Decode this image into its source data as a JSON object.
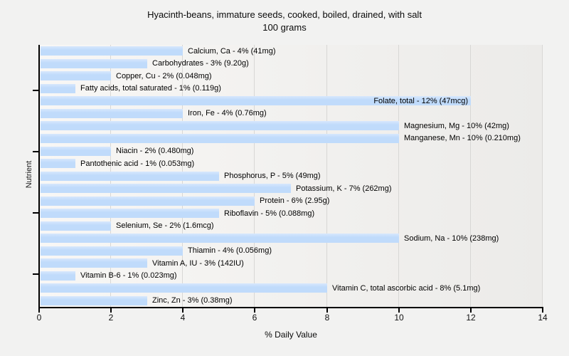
{
  "title": {
    "line1": "Hyacinth-beans, immature seeds, cooked, boiled, drained, with salt",
    "line2": "100 grams"
  },
  "colors": {
    "bar": "#c0dbfb",
    "bar_highlight": "#d7e7fd",
    "gridline": "#d8d7d5",
    "axis": "#000000",
    "page_bg": "#f2f2f1",
    "plot_bg_left": "#f8f7f5",
    "plot_bg_right": "#ecebe9"
  },
  "chart_data": {
    "type": "bar",
    "orientation": "horizontal",
    "title": "Hyacinth-beans, immature seeds, cooked, boiled, drained, with salt 100 grams",
    "xlabel": "% Daily Value",
    "ylabel": "Nutrient",
    "xlim": [
      0,
      14
    ],
    "x_ticks": [
      0,
      2,
      4,
      6,
      8,
      10,
      12,
      14
    ],
    "x_tick_labels": [
      "0",
      "2",
      "4",
      "6",
      "8",
      "10",
      "12",
      "14"
    ],
    "grid": "vertical-gridlines-on",
    "legend": "none",
    "categories": [
      "Calcium, Ca",
      "Carbohydrates",
      "Copper, Cu",
      "Fatty acids, total saturated",
      "Folate, total",
      "Iron, Fe",
      "Magnesium, Mg",
      "Manganese, Mn",
      "Niacin",
      "Pantothenic acid",
      "Phosphorus, P",
      "Potassium, K",
      "Protein",
      "Riboflavin",
      "Selenium, Se",
      "Sodium, Na",
      "Thiamin",
      "Vitamin A, IU",
      "Vitamin B-6",
      "Vitamin C, total ascorbic acid",
      "Zinc, Zn"
    ],
    "values": [
      4,
      3,
      2,
      1,
      12,
      4,
      10,
      10,
      2,
      1,
      5,
      7,
      6,
      5,
      2,
      10,
      4,
      3,
      1,
      8,
      3
    ],
    "bars": [
      {
        "name": "Calcium, Ca",
        "percent": 4,
        "amount": "41mg",
        "label": "Calcium, Ca - 4% (41mg)",
        "label_inside": false
      },
      {
        "name": "Carbohydrates",
        "percent": 3,
        "amount": "9.20g",
        "label": "Carbohydrates - 3% (9.20g)",
        "label_inside": false
      },
      {
        "name": "Copper, Cu",
        "percent": 2,
        "amount": "0.048mg",
        "label": "Copper, Cu - 2% (0.048mg)",
        "label_inside": false
      },
      {
        "name": "Fatty acids, total saturated",
        "percent": 1,
        "amount": "0.119g",
        "label": "Fatty acids, total saturated - 1% (0.119g)",
        "label_inside": false
      },
      {
        "name": "Folate, total",
        "percent": 12,
        "amount": "47mcg",
        "label": "Folate, total - 12% (47mcg)",
        "label_inside": true
      },
      {
        "name": "Iron, Fe",
        "percent": 4,
        "amount": "0.76mg",
        "label": "Iron, Fe - 4% (0.76mg)",
        "label_inside": false
      },
      {
        "name": "Magnesium, Mg",
        "percent": 10,
        "amount": "42mg",
        "label": "Magnesium, Mg - 10% (42mg)",
        "label_inside": false
      },
      {
        "name": "Manganese, Mn",
        "percent": 10,
        "amount": "0.210mg",
        "label": "Manganese, Mn - 10% (0.210mg)",
        "label_inside": false
      },
      {
        "name": "Niacin",
        "percent": 2,
        "amount": "0.480mg",
        "label": "Niacin - 2% (0.480mg)",
        "label_inside": false
      },
      {
        "name": "Pantothenic acid",
        "percent": 1,
        "amount": "0.053mg",
        "label": "Pantothenic acid - 1% (0.053mg)",
        "label_inside": false
      },
      {
        "name": "Phosphorus, P",
        "percent": 5,
        "amount": "49mg",
        "label": "Phosphorus, P - 5% (49mg)",
        "label_inside": false
      },
      {
        "name": "Potassium, K",
        "percent": 7,
        "amount": "262mg",
        "label": "Potassium, K - 7% (262mg)",
        "label_inside": false
      },
      {
        "name": "Protein",
        "percent": 6,
        "amount": "2.95g",
        "label": "Protein - 6% (2.95g)",
        "label_inside": false
      },
      {
        "name": "Riboflavin",
        "percent": 5,
        "amount": "0.088mg",
        "label": "Riboflavin - 5% (0.088mg)",
        "label_inside": false
      },
      {
        "name": "Selenium, Se",
        "percent": 2,
        "amount": "1.6mcg",
        "label": "Selenium, Se - 2% (1.6mcg)",
        "label_inside": false
      },
      {
        "name": "Sodium, Na",
        "percent": 10,
        "amount": "238mg",
        "label": "Sodium, Na - 10% (238mg)",
        "label_inside": false
      },
      {
        "name": "Thiamin",
        "percent": 4,
        "amount": "0.056mg",
        "label": "Thiamin - 4% (0.056mg)",
        "label_inside": false
      },
      {
        "name": "Vitamin A, IU",
        "percent": 3,
        "amount": "142IU",
        "label": "Vitamin A, IU - 3% (142IU)",
        "label_inside": false
      },
      {
        "name": "Vitamin B-6",
        "percent": 1,
        "amount": "0.023mg",
        "label": "Vitamin B-6 - 1% (0.023mg)",
        "label_inside": false
      },
      {
        "name": "Vitamin C, total ascorbic acid",
        "percent": 8,
        "amount": "5.1mg",
        "label": "Vitamin C, total ascorbic acid - 8% (5.1mg)",
        "label_inside": false
      },
      {
        "name": "Zinc, Zn",
        "percent": 3,
        "amount": "0.38mg",
        "label": "Zinc, Zn - 3% (0.38mg)",
        "label_inside": false
      }
    ]
  }
}
